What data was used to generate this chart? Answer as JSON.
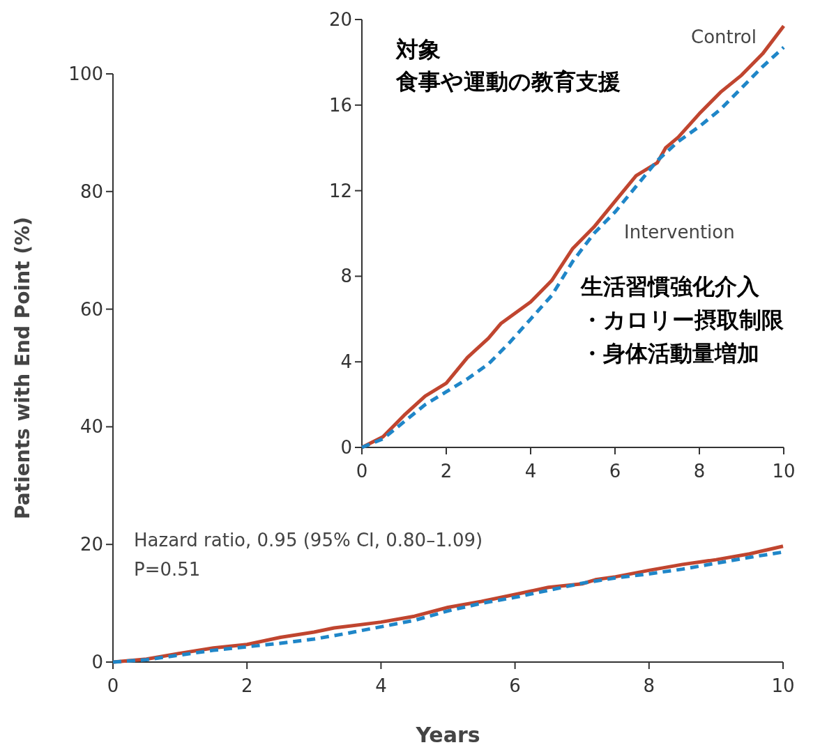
{
  "chart_data": [
    {
      "type": "line",
      "xlabel": "Years",
      "ylabel": "Patients with End Point (%)",
      "xlim": [
        0,
        10
      ],
      "ylim": [
        0,
        100
      ],
      "xticks": [
        0,
        2,
        4,
        6,
        8,
        10
      ],
      "yticks": [
        0,
        20,
        40,
        60,
        80,
        100
      ],
      "grid": false,
      "annotations": [
        "Hazard ratio, 0.95 (95% CI, 0.80–1.09)",
        "P=0.51"
      ],
      "series": [
        {
          "color": "#c0452f",
          "line_style": "solid",
          "x": [
            0,
            0.5,
            1,
            1.5,
            2,
            2.5,
            3,
            3.3,
            4,
            4.5,
            5,
            5.5,
            6,
            6.5,
            7,
            7.2,
            7.5,
            8,
            8.5,
            9,
            9.5,
            10
          ],
          "values": [
            0,
            0.5,
            1.5,
            2.4,
            3.0,
            4.2,
            5.1,
            5.8,
            6.8,
            7.8,
            9.3,
            10.3,
            11.5,
            12.7,
            13.3,
            14.0,
            14.5,
            15.6,
            16.6,
            17.4,
            18.4,
            19.7
          ]
        },
        {
          "color": "#1f86c8",
          "line_style": "dashed",
          "x": [
            0,
            0.5,
            1,
            1.5,
            2,
            2.5,
            3,
            3.5,
            4,
            4.5,
            5,
            5.5,
            6,
            6.5,
            7,
            7.5,
            8,
            8.5,
            9,
            9.5,
            10
          ],
          "values": [
            0,
            0.4,
            1.2,
            2.0,
            2.6,
            3.2,
            3.9,
            4.9,
            6.0,
            7.1,
            8.7,
            10.0,
            11.0,
            12.2,
            13.4,
            14.3,
            15.0,
            15.8,
            16.8,
            17.8,
            18.7
          ]
        }
      ]
    },
    {
      "type": "line",
      "xlim": [
        0,
        10
      ],
      "ylim": [
        0,
        20
      ],
      "xticks": [
        0,
        2,
        4,
        6,
        8,
        10
      ],
      "yticks": [
        0,
        4,
        8,
        12,
        16,
        20
      ],
      "grid": false,
      "annotations": [
        "対象",
        "食事や運動の教育支援",
        "生活習慣強化介入",
        "・カロリー摂取制限",
        "・身体活動量増加"
      ],
      "series": [
        {
          "name": "Control",
          "color": "#c0452f",
          "line_style": "solid",
          "x": [
            0,
            0.5,
            1,
            1.5,
            2,
            2.5,
            3,
            3.3,
            4,
            4.5,
            5,
            5.5,
            6,
            6.5,
            7,
            7.2,
            7.5,
            8,
            8.5,
            9,
            9.5,
            10
          ],
          "values": [
            0,
            0.5,
            1.5,
            2.4,
            3.0,
            4.2,
            5.1,
            5.8,
            6.8,
            7.8,
            9.3,
            10.3,
            11.5,
            12.7,
            13.3,
            14.0,
            14.5,
            15.6,
            16.6,
            17.4,
            18.4,
            19.7
          ]
        },
        {
          "name": "Intervention",
          "color": "#1f86c8",
          "line_style": "dashed",
          "x": [
            0,
            0.5,
            1,
            1.5,
            2,
            2.5,
            3,
            3.5,
            4,
            4.5,
            5,
            5.5,
            6,
            6.5,
            7,
            7.5,
            8,
            8.5,
            9,
            9.5,
            10
          ],
          "values": [
            0,
            0.4,
            1.2,
            2.0,
            2.6,
            3.2,
            3.9,
            4.9,
            6.0,
            7.1,
            8.7,
            10.0,
            11.0,
            12.2,
            13.4,
            14.3,
            15.0,
            15.8,
            16.8,
            17.8,
            18.7
          ]
        }
      ]
    }
  ]
}
